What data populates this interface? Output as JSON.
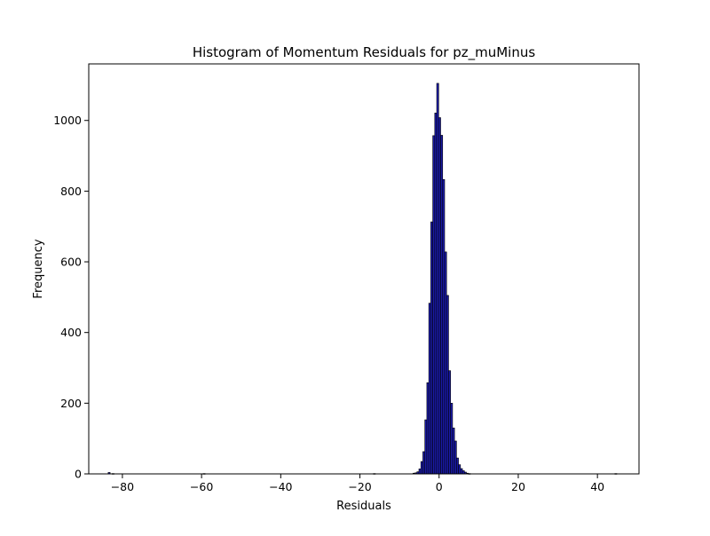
{
  "chart_data": {
    "type": "bar",
    "title": "Histogram of Momentum Residuals for pz_muMinus",
    "xlabel": "Residuals",
    "ylabel": "Frequency",
    "xlim": [
      -88.5,
      50.5
    ],
    "ylim": [
      0,
      1160
    ],
    "xticks": [
      -80,
      -60,
      -40,
      -20,
      0,
      20,
      40
    ],
    "xtick_labels": [
      "−80",
      "−60",
      "−40",
      "−20",
      "0",
      "20",
      "40"
    ],
    "yticks": [
      0,
      200,
      400,
      600,
      800,
      1000
    ],
    "ytick_labels": [
      "0",
      "200",
      "400",
      "600",
      "800",
      "1000"
    ],
    "bar_color": "#1a1aa6",
    "edge_color": "#000000",
    "grid": false,
    "bins": [
      {
        "x0": -83.6,
        "x1": -83.1,
        "value": 4
      },
      {
        "x0": -82.6,
        "x1": -82.1,
        "value": 1
      },
      {
        "x0": -59.6,
        "x1": -59.1,
        "value": 1
      },
      {
        "x0": -16.6,
        "x1": -16.1,
        "value": 1
      },
      {
        "x0": -6.6,
        "x1": -6.1,
        "value": 2
      },
      {
        "x0": -6.1,
        "x1": -5.6,
        "value": 3
      },
      {
        "x0": -5.6,
        "x1": -5.1,
        "value": 6
      },
      {
        "x0": -5.1,
        "x1": -4.6,
        "value": 14
      },
      {
        "x0": -4.6,
        "x1": -4.1,
        "value": 35
      },
      {
        "x0": -4.1,
        "x1": -3.6,
        "value": 63
      },
      {
        "x0": -3.6,
        "x1": -3.1,
        "value": 153
      },
      {
        "x0": -3.1,
        "x1": -2.6,
        "value": 258
      },
      {
        "x0": -2.6,
        "x1": -2.1,
        "value": 483
      },
      {
        "x0": -2.1,
        "x1": -1.6,
        "value": 713
      },
      {
        "x0": -1.6,
        "x1": -1.1,
        "value": 957
      },
      {
        "x0": -1.1,
        "x1": -0.6,
        "value": 1021
      },
      {
        "x0": -0.6,
        "x1": -0.1,
        "value": 1105
      },
      {
        "x0": -0.1,
        "x1": 0.4,
        "value": 1008
      },
      {
        "x0": 0.4,
        "x1": 0.9,
        "value": 958
      },
      {
        "x0": 0.9,
        "x1": 1.4,
        "value": 833
      },
      {
        "x0": 1.4,
        "x1": 1.9,
        "value": 628
      },
      {
        "x0": 1.9,
        "x1": 2.4,
        "value": 505
      },
      {
        "x0": 2.4,
        "x1": 2.9,
        "value": 292
      },
      {
        "x0": 2.9,
        "x1": 3.4,
        "value": 200
      },
      {
        "x0": 3.4,
        "x1": 3.9,
        "value": 130
      },
      {
        "x0": 3.9,
        "x1": 4.4,
        "value": 93
      },
      {
        "x0": 4.4,
        "x1": 4.9,
        "value": 45
      },
      {
        "x0": 4.9,
        "x1": 5.4,
        "value": 26
      },
      {
        "x0": 5.4,
        "x1": 5.9,
        "value": 15
      },
      {
        "x0": 5.9,
        "x1": 6.4,
        "value": 9
      },
      {
        "x0": 6.4,
        "x1": 6.9,
        "value": 5
      },
      {
        "x0": 6.9,
        "x1": 7.4,
        "value": 2
      },
      {
        "x0": 7.4,
        "x1": 7.9,
        "value": 1
      },
      {
        "x0": 44.4,
        "x1": 44.9,
        "value": 1
      }
    ]
  }
}
